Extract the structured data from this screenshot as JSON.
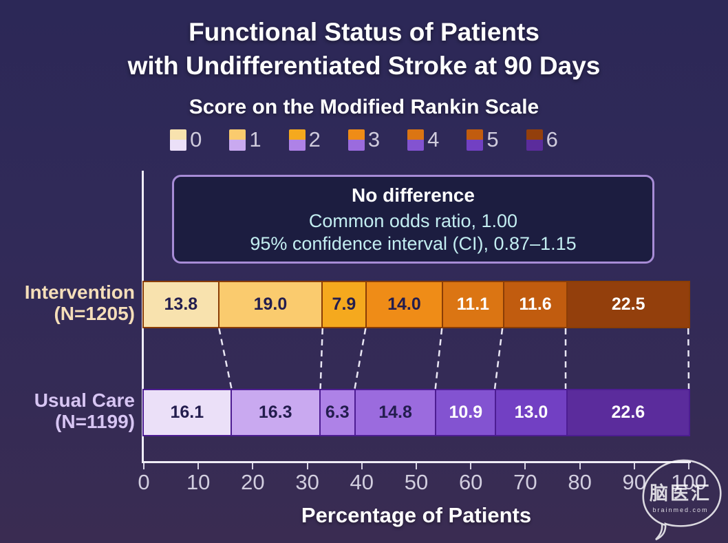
{
  "title": {
    "line1": "Functional Status of Patients",
    "line2": "with Undifferentiated Stroke at 90 Days"
  },
  "subtitle": "Score on the Modified Rankin Scale",
  "info_box": {
    "heading": "No difference",
    "odds_ratio": "Common odds ratio, 1.00",
    "confidence_interval": "95% confidence interval (CI), 0.87–1.15"
  },
  "chart_data": {
    "type": "bar",
    "stacked": true,
    "orientation": "horizontal",
    "legend_title": "Score on the Modified Rankin Scale",
    "categories": [
      "0",
      "1",
      "2",
      "3",
      "4",
      "5",
      "6"
    ],
    "series": [
      {
        "name": "Intervention",
        "n_label": "(N=1205)",
        "label_color": "#f5deb9",
        "values": [
          13.8,
          19.0,
          7.9,
          14.0,
          11.1,
          11.6,
          22.5
        ],
        "value_labels": [
          "13.8",
          "19.0",
          "7.9",
          "14.0",
          "11.1",
          "11.6",
          "22.5"
        ],
        "colors": [
          "#f8e2ae",
          "#facb6e",
          "#f5a91e",
          "#ef8c17",
          "#db7513",
          "#c15c0f",
          "#933f0c"
        ],
        "text_colors": [
          "#231d4e",
          "#231d4e",
          "#231d4e",
          "#231d4e",
          "#ffffff",
          "#ffffff",
          "#ffffff"
        ],
        "border_color": "#8a3d06"
      },
      {
        "name": "Usual Care",
        "n_label": "(N=1199)",
        "label_color": "#d7c5f3",
        "values": [
          16.1,
          16.3,
          6.3,
          14.8,
          10.9,
          13.0,
          22.6
        ],
        "value_labels": [
          "16.1",
          "16.3",
          "6.3",
          "14.8",
          "10.9",
          "13.0",
          "22.6"
        ],
        "colors": [
          "#ebe0f8",
          "#c9a9f0",
          "#ae82e7",
          "#9b6bde",
          "#8353d1",
          "#7240c3",
          "#5b2c9c"
        ],
        "text_colors": [
          "#231d4e",
          "#231d4e",
          "#231d4e",
          "#231d4e",
          "#ffffff",
          "#ffffff",
          "#ffffff"
        ],
        "border_color": "#4d1d92"
      }
    ],
    "xlabel": "Percentage of Patients",
    "xlim": [
      0,
      100
    ],
    "x_ticks": [
      0,
      10,
      20,
      30,
      40,
      50,
      60,
      70,
      80,
      90,
      100
    ],
    "grid": false,
    "legend_position": "top"
  },
  "watermark": {
    "cn": "脑医汇",
    "en": "brainmed.com"
  }
}
